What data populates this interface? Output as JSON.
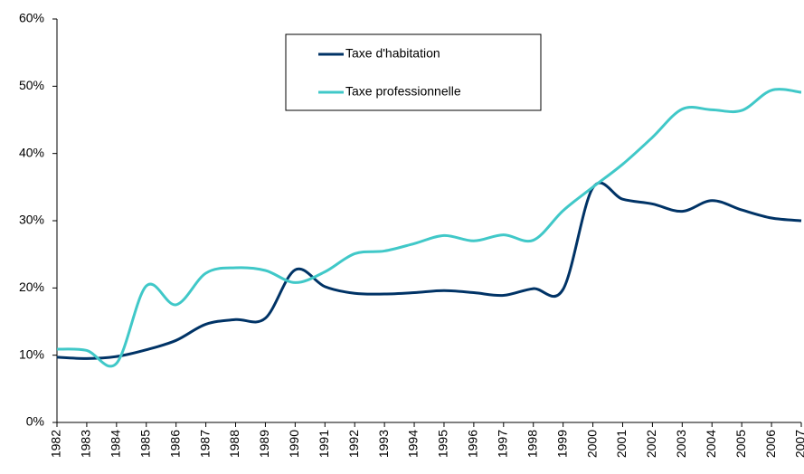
{
  "chart_data": {
    "type": "line",
    "categories": [
      "1982",
      "1983",
      "1984",
      "1985",
      "1986",
      "1987",
      "1988",
      "1989",
      "1990",
      "1991",
      "1992",
      "1993",
      "1994",
      "1995",
      "1996",
      "1997",
      "1998",
      "1999",
      "2000",
      "2001",
      "2002",
      "2003",
      "2004",
      "2005",
      "2006",
      "2007"
    ],
    "series": [
      {
        "name": "Taxe d'habitation",
        "color": "#003366",
        "values": [
          9.7,
          9.5,
          9.8,
          10.8,
          12.2,
          14.6,
          15.3,
          15.5,
          22.7,
          20.2,
          19.2,
          19.1,
          19.3,
          19.6,
          19.3,
          18.9,
          19.9,
          19.8,
          34.9,
          33.2,
          32.5,
          31.4,
          33.0,
          31.6,
          30.4,
          30.0
        ]
      },
      {
        "name": "Taxe professionnelle",
        "color": "#40c8c8",
        "values": [
          10.9,
          10.7,
          8.8,
          20.3,
          17.5,
          22.2,
          23.0,
          22.6,
          20.8,
          22.4,
          25.1,
          25.5,
          26.6,
          27.8,
          27.0,
          27.9,
          27.1,
          31.5,
          35.0,
          38.4,
          42.4,
          46.6,
          46.5,
          46.4,
          49.4,
          49.1
        ]
      }
    ],
    "ylim": [
      0,
      60
    ],
    "yticks": [
      {
        "value": 0,
        "label": "0%"
      },
      {
        "value": 10,
        "label": "10%"
      },
      {
        "value": 20,
        "label": "20%"
      },
      {
        "value": 30,
        "label": "30%"
      },
      {
        "value": 40,
        "label": "40%"
      },
      {
        "value": 50,
        "label": "50%"
      },
      {
        "value": 60,
        "label": "60%"
      }
    ]
  }
}
